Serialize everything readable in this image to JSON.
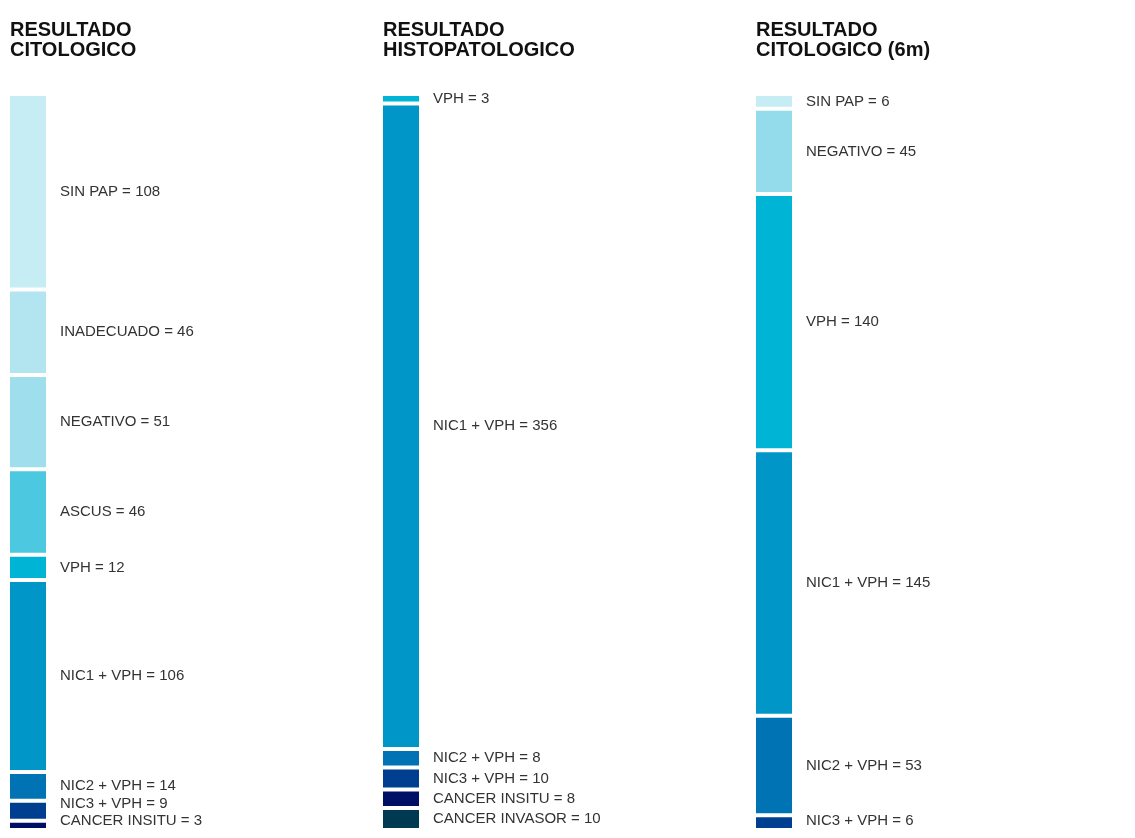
{
  "chart_data": [
    {
      "type": "other",
      "title": "RESULTADO\nCITOLOGICO",
      "data_labels": true,
      "categories": [
        "SIN PAP =",
        "INADECUADO =",
        "NEGATIVO =",
        "ASCUS =",
        "VPH =",
        "NIC1 + VPH =",
        "NIC2 + VPH =",
        "NIC3 + VPH =",
        "CANCER INSITU ="
      ],
      "values": [
        108,
        46,
        51,
        46,
        12,
        106,
        14,
        9,
        3
      ],
      "colors": [
        "#c6ecf4",
        "#b3e5f0",
        "#9fdeec",
        "#4cc8e0",
        "#00b4d6",
        "#0096c8",
        "#0073b4",
        "#003f8f",
        "#000f66"
      ]
    },
    {
      "type": "other",
      "title": "RESULTADO\nHISTOPATOLOGICO",
      "data_labels": true,
      "categories": [
        "VPH =",
        "NIC1 + VPH =",
        "NIC2 + VPH =",
        "NIC3 + VPH =",
        "CANCER INSITU =",
        "CANCER INVASOR ="
      ],
      "values": [
        3,
        356,
        8,
        10,
        8,
        10
      ],
      "colors": [
        "#00b4d6",
        "#0096c8",
        "#0073b4",
        "#003f8f",
        "#000f66",
        "#003a52"
      ]
    },
    {
      "type": "other",
      "title": "RESULTADO\nCITOLOGICO (6m)",
      "data_labels": true,
      "categories": [
        "SIN PAP =",
        "NEGATIVO =",
        "VPH =",
        "NIC1 + VPH =",
        "NIC2 + VPH =",
        "NIC3 + VPH ="
      ],
      "values": [
        6,
        45,
        140,
        145,
        53,
        6
      ],
      "colors": [
        "#c6ecf4",
        "#94dcec",
        "#00b4d6",
        "#0096c8",
        "#0073b4",
        "#003f8f"
      ]
    }
  ]
}
